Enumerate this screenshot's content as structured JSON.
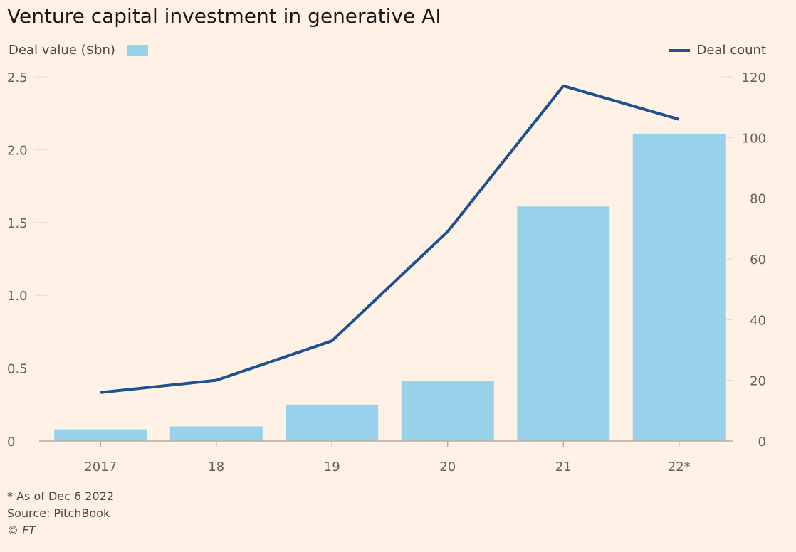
{
  "title": "Venture capital investment in generative AI",
  "legend": {
    "bar_label": "Deal value ($bn)",
    "line_label": "Deal count"
  },
  "footnotes": {
    "note": "* As of Dec 6 2022",
    "source": "Source: PitchBook",
    "copyright": "© FT"
  },
  "colors": {
    "bar": "#97d2ea",
    "line": "#1d5191",
    "background": "#fff1e5",
    "gridline": "#e6d9ce"
  },
  "chart_data": {
    "type": "bar",
    "title": "Venture capital investment in generative AI",
    "categories": [
      "2017",
      "18",
      "19",
      "20",
      "21",
      "22*"
    ],
    "series": [
      {
        "name": "Deal value ($bn)",
        "type": "bar",
        "axis": "left",
        "values": [
          0.08,
          0.1,
          0.25,
          0.41,
          1.61,
          2.11
        ]
      },
      {
        "name": "Deal count",
        "type": "line",
        "axis": "right",
        "values": [
          16,
          20,
          33,
          69,
          117,
          106
        ]
      }
    ],
    "y_left": {
      "ylim": [
        0,
        2.5
      ],
      "ticks": [
        "0",
        "0.5",
        "1.0",
        "1.5",
        "2.0",
        "2.5"
      ],
      "tick_values": [
        0,
        0.5,
        1.0,
        1.5,
        2.0,
        2.5
      ]
    },
    "y_right": {
      "ylim": [
        0,
        120
      ],
      "ticks": [
        "0",
        "20",
        "40",
        "60",
        "80",
        "100",
        "120"
      ],
      "tick_values": [
        0,
        20,
        40,
        60,
        80,
        100,
        120
      ]
    },
    "grid": true,
    "legend": "top"
  }
}
